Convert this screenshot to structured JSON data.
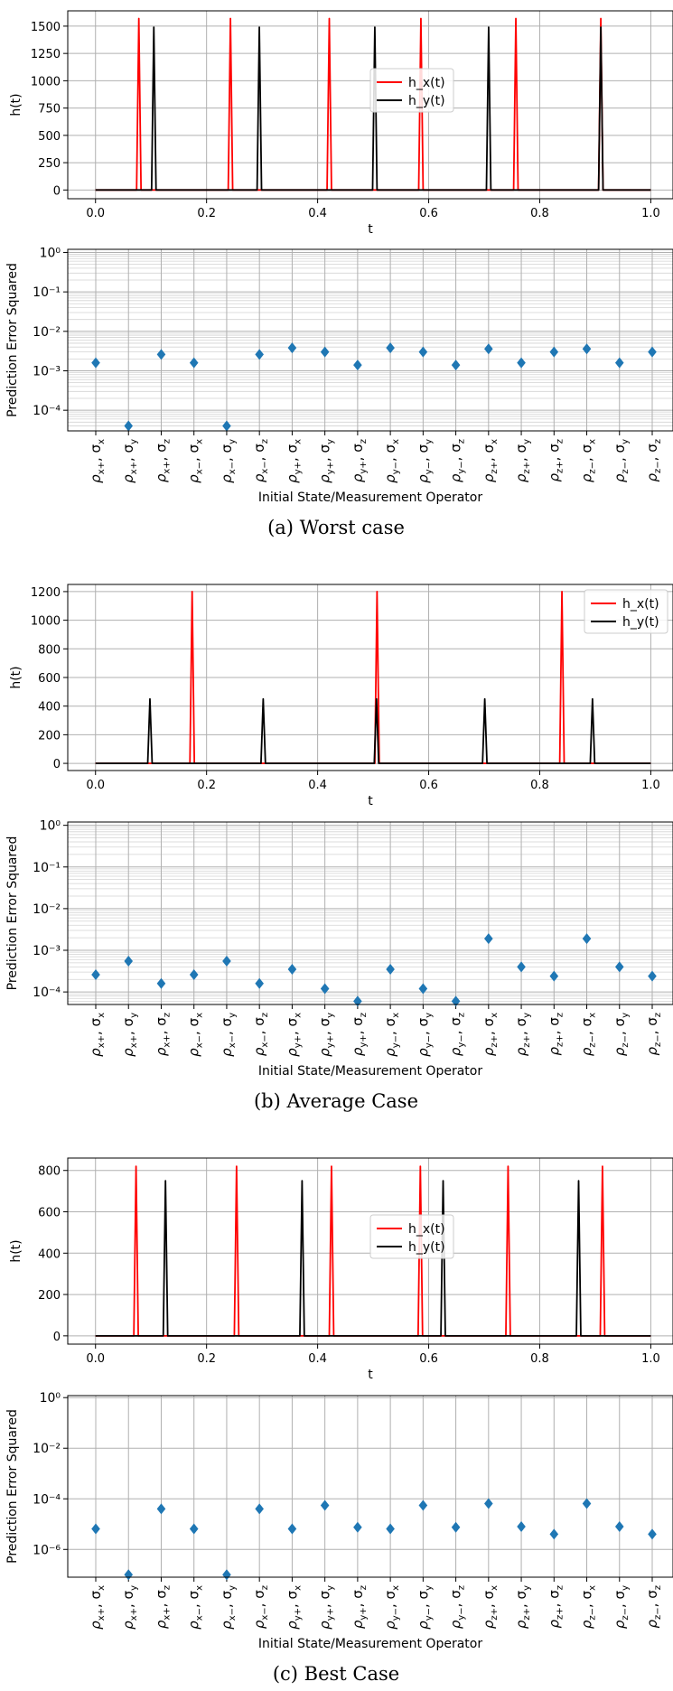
{
  "chart_data": [
    {
      "id": "a_top",
      "type": "line",
      "xlabel": "t",
      "ylabel": "h(t)",
      "xlim": [
        -0.05,
        1.04
      ],
      "ylim": [
        -80,
        1640
      ],
      "xticks": [
        0.0,
        0.2,
        0.4,
        0.6,
        0.8,
        1.0
      ],
      "xtick_labels": [
        "0.0",
        "0.2",
        "0.4",
        "0.6",
        "0.8",
        "1.0"
      ],
      "yticks": [
        0,
        250,
        500,
        750,
        1000,
        1250,
        1500
      ],
      "ytick_labels": [
        "0",
        "250",
        "500",
        "750",
        "1000",
        "1250",
        "1500"
      ],
      "grid": true,
      "legend": "center",
      "series": [
        {
          "name": "h_x(t)",
          "color": "#ff0000",
          "peak_height": 1570,
          "peaks": [
            0.078,
            0.243,
            0.421,
            0.586,
            0.757,
            0.91
          ]
        },
        {
          "name": "h_y(t)",
          "color": "#000000",
          "peak_height": 1490,
          "peaks": [
            0.105,
            0.295,
            0.503,
            0.708,
            0.91
          ]
        }
      ]
    },
    {
      "id": "a_bottom",
      "type": "scatter",
      "xlabel": "Initial State/Measurement Operator",
      "ylabel": "Prediction Error Squared",
      "yscale": "log",
      "ylim": [
        3e-05,
        1.2
      ],
      "yticks": [
        0.0001,
        0.001,
        0.01,
        0.1,
        1
      ],
      "ytick_labels": [
        "10⁻⁴",
        "10⁻³",
        "10⁻²",
        "10⁻¹",
        "10⁰"
      ],
      "grid": true,
      "marker_color": "#1f77b4",
      "values": [
        0.0016,
        4e-05,
        0.0026,
        0.0016,
        4e-05,
        0.0026,
        0.0038,
        0.003,
        0.0014,
        0.0038,
        0.003,
        0.0014,
        0.0036,
        0.0016,
        0.003,
        0.0036,
        0.0016,
        0.003
      ]
    },
    {
      "id": "b_top",
      "type": "line",
      "xlabel": "t",
      "ylabel": "h(t)",
      "xlim": [
        -0.05,
        1.04
      ],
      "ylim": [
        -50,
        1250
      ],
      "xticks": [
        0.0,
        0.2,
        0.4,
        0.6,
        0.8,
        1.0
      ],
      "xtick_labels": [
        "0.0",
        "0.2",
        "0.4",
        "0.6",
        "0.8",
        "1.0"
      ],
      "yticks": [
        0,
        200,
        400,
        600,
        800,
        1000,
        1200
      ],
      "ytick_labels": [
        "0",
        "200",
        "400",
        "600",
        "800",
        "1000",
        "1200"
      ],
      "grid": true,
      "legend": "top-right",
      "series": [
        {
          "name": "h_x(t)",
          "color": "#ff0000",
          "peak_height": 1200,
          "peaks": [
            0.174,
            0.507,
            0.84
          ]
        },
        {
          "name": "h_y(t)",
          "color": "#000000",
          "peak_height": 450,
          "peaks": [
            0.098,
            0.302,
            0.506,
            0.701,
            0.895
          ]
        }
      ]
    },
    {
      "id": "b_bottom",
      "type": "scatter",
      "xlabel": "Initial State/Measurement Operator",
      "ylabel": "Prediction Error Squared",
      "yscale": "log",
      "ylim": [
        5e-05,
        1.2
      ],
      "yticks": [
        0.0001,
        0.001,
        0.01,
        0.1,
        1
      ],
      "ytick_labels": [
        "10⁻⁴",
        "10⁻³",
        "10⁻²",
        "10⁻¹",
        "10⁰"
      ],
      "grid": true,
      "marker_color": "#1f77b4",
      "values": [
        0.00026,
        0.00055,
        0.00016,
        0.00026,
        0.00055,
        0.00016,
        0.00035,
        0.00012,
        6e-05,
        0.00035,
        0.00012,
        6e-05,
        0.0019,
        0.0004,
        0.00024,
        0.0019,
        0.0004,
        0.00024
      ]
    },
    {
      "id": "c_top",
      "type": "line",
      "xlabel": "t",
      "ylabel": "h(t)",
      "xlim": [
        -0.05,
        1.04
      ],
      "ylim": [
        -40,
        860
      ],
      "xticks": [
        0.0,
        0.2,
        0.4,
        0.6,
        0.8,
        1.0
      ],
      "xtick_labels": [
        "0.0",
        "0.2",
        "0.4",
        "0.6",
        "0.8",
        "1.0"
      ],
      "yticks": [
        0,
        200,
        400,
        600,
        800
      ],
      "ytick_labels": [
        "0",
        "200",
        "400",
        "600",
        "800"
      ],
      "grid": true,
      "legend": "center",
      "series": [
        {
          "name": "h_x(t)",
          "color": "#ff0000",
          "peak_height": 820,
          "peaks": [
            0.073,
            0.254,
            0.425,
            0.585,
            0.743,
            0.913
          ]
        },
        {
          "name": "h_y(t)",
          "color": "#000000",
          "peak_height": 750,
          "peaks": [
            0.126,
            0.372,
            0.626,
            0.87
          ]
        }
      ]
    },
    {
      "id": "c_bottom",
      "type": "scatter",
      "xlabel": "Initial State/Measurement Operator",
      "ylabel": "Prediction Error Squared",
      "yscale": "log",
      "ylim": [
        8e-08,
        1.2
      ],
      "yticks": [
        1e-06,
        0.0001,
        0.01,
        1
      ],
      "ytick_labels": [
        "10⁻⁶",
        "10⁻⁴",
        "10⁻²",
        "10⁰"
      ],
      "grid": true,
      "marker_color": "#1f77b4",
      "values": [
        6.5e-06,
        1e-07,
        4e-05,
        6.5e-06,
        1e-07,
        4e-05,
        6.5e-06,
        5.5e-05,
        7.5e-06,
        6.5e-06,
        5.5e-05,
        7.5e-06,
        6.5e-05,
        8e-06,
        4e-06,
        6.5e-05,
        8e-06,
        4e-06
      ]
    }
  ],
  "categories": [
    {
      "base": "ρ",
      "sub": "x+",
      "op": "σ",
      "opsub": "x"
    },
    {
      "base": "ρ",
      "sub": "x+",
      "op": "σ",
      "opsub": "y"
    },
    {
      "base": "ρ",
      "sub": "x+",
      "op": "σ",
      "opsub": "z"
    },
    {
      "base": "ρ",
      "sub": "x−",
      "op": "σ",
      "opsub": "x"
    },
    {
      "base": "ρ",
      "sub": "x−",
      "op": "σ",
      "opsub": "y"
    },
    {
      "base": "ρ",
      "sub": "x−",
      "op": "σ",
      "opsub": "z"
    },
    {
      "base": "ρ",
      "sub": "y+",
      "op": "σ",
      "opsub": "x"
    },
    {
      "base": "ρ",
      "sub": "y+",
      "op": "σ",
      "opsub": "y"
    },
    {
      "base": "ρ",
      "sub": "y+",
      "op": "σ",
      "opsub": "z"
    },
    {
      "base": "ρ",
      "sub": "y−",
      "op": "σ",
      "opsub": "x"
    },
    {
      "base": "ρ",
      "sub": "y−",
      "op": "σ",
      "opsub": "y"
    },
    {
      "base": "ρ",
      "sub": "y−",
      "op": "σ",
      "opsub": "z"
    },
    {
      "base": "ρ",
      "sub": "z+",
      "op": "σ",
      "opsub": "x"
    },
    {
      "base": "ρ",
      "sub": "z+",
      "op": "σ",
      "opsub": "y"
    },
    {
      "base": "ρ",
      "sub": "z+",
      "op": "σ",
      "opsub": "z"
    },
    {
      "base": "ρ",
      "sub": "z−",
      "op": "σ",
      "opsub": "x"
    },
    {
      "base": "ρ",
      "sub": "z−",
      "op": "σ",
      "opsub": "y"
    },
    {
      "base": "ρ",
      "sub": "z−",
      "op": "σ",
      "opsub": "z"
    }
  ],
  "captions": [
    "(a) Worst case",
    "(b) Average Case",
    "(c) Best Case"
  ]
}
